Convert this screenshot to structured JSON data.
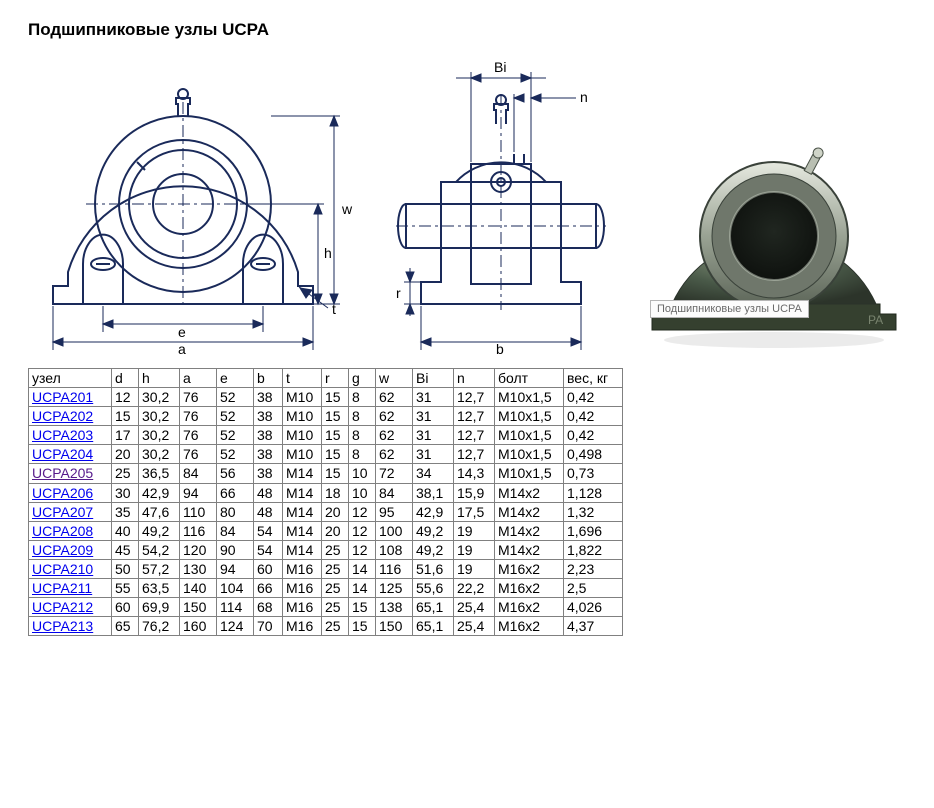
{
  "title": "Подшипниковые узлы UCPA",
  "tooltip": "Подшипниковые узлы UCPA",
  "diagram": {
    "stroke": "#1a2a5a",
    "label_font_size": 14,
    "labels_front": {
      "w": "w",
      "h": "h",
      "t": "t",
      "e": "e",
      "a": "a"
    },
    "labels_side": {
      "Bi": "Bi",
      "n": "n",
      "r": "r",
      "b": "b"
    },
    "photo_colors": {
      "body": "#4a5a49",
      "body_hi": "#7a8a74",
      "bore": "#b6bdaf",
      "bore_dark": "#323a30",
      "base": "#2f362d"
    }
  },
  "table": {
    "columns": [
      "узел",
      "d",
      "h",
      "a",
      "e",
      "b",
      "t",
      "r",
      "g",
      "w",
      "Bi",
      "n",
      "болт",
      "вес, кг"
    ],
    "col_keys": [
      "uzel",
      "d",
      "h",
      "a",
      "e",
      "b",
      "t",
      "r",
      "g",
      "w",
      "Bi",
      "n",
      "bolt",
      "wt"
    ],
    "rows": [
      {
        "uzel": "UCPA201",
        "d": "12",
        "h": "30,2",
        "a": "76",
        "e": "52",
        "b": "38",
        "t": "M10",
        "r": "15",
        "g": "8",
        "w": "62",
        "Bi": "31",
        "n": "12,7",
        "bolt": "M10x1,5",
        "wt": "0,42",
        "visited": false
      },
      {
        "uzel": "UCPA202",
        "d": "15",
        "h": "30,2",
        "a": "76",
        "e": "52",
        "b": "38",
        "t": "M10",
        "r": "15",
        "g": "8",
        "w": "62",
        "Bi": "31",
        "n": "12,7",
        "bolt": "M10x1,5",
        "wt": "0,42",
        "visited": false
      },
      {
        "uzel": "UCPA203",
        "d": "17",
        "h": "30,2",
        "a": "76",
        "e": "52",
        "b": "38",
        "t": "M10",
        "r": "15",
        "g": "8",
        "w": "62",
        "Bi": "31",
        "n": "12,7",
        "bolt": "M10x1,5",
        "wt": "0,42",
        "visited": false
      },
      {
        "uzel": "UCPA204",
        "d": "20",
        "h": "30,2",
        "a": "76",
        "e": "52",
        "b": "38",
        "t": "M10",
        "r": "15",
        "g": "8",
        "w": "62",
        "Bi": "31",
        "n": "12,7",
        "bolt": "M10x1,5",
        "wt": "0,498",
        "visited": false
      },
      {
        "uzel": "UCPA205",
        "d": "25",
        "h": "36,5",
        "a": "84",
        "e": "56",
        "b": "38",
        "t": "M14",
        "r": "15",
        "g": "10",
        "w": "72",
        "Bi": "34",
        "n": "14,3",
        "bolt": "M10x1,5",
        "wt": "0,73",
        "visited": true
      },
      {
        "uzel": "UCPA206",
        "d": "30",
        "h": "42,9",
        "a": "94",
        "e": "66",
        "b": "48",
        "t": "M14",
        "r": "18",
        "g": "10",
        "w": "84",
        "Bi": "38,1",
        "n": "15,9",
        "bolt": "M14x2",
        "wt": "1,128",
        "visited": false
      },
      {
        "uzel": "UCPA207",
        "d": "35",
        "h": "47,6",
        "a": "110",
        "e": "80",
        "b": "48",
        "t": "M14",
        "r": "20",
        "g": "12",
        "w": "95",
        "Bi": "42,9",
        "n": "17,5",
        "bolt": "M14x2",
        "wt": "1,32",
        "visited": false
      },
      {
        "uzel": "UCPA208",
        "d": "40",
        "h": "49,2",
        "a": "116",
        "e": "84",
        "b": "54",
        "t": "M14",
        "r": "20",
        "g": "12",
        "w": "100",
        "Bi": "49,2",
        "n": "19",
        "bolt": "M14x2",
        "wt": "1,696",
        "visited": false
      },
      {
        "uzel": "UCPA209",
        "d": "45",
        "h": "54,2",
        "a": "120",
        "e": "90",
        "b": "54",
        "t": "M14",
        "r": "25",
        "g": "12",
        "w": "108",
        "Bi": "49,2",
        "n": "19",
        "bolt": "M14x2",
        "wt": "1,822",
        "visited": false
      },
      {
        "uzel": "UCPA210",
        "d": "50",
        "h": "57,2",
        "a": "130",
        "e": "94",
        "b": "60",
        "t": "M16",
        "r": "25",
        "g": "14",
        "w": "116",
        "Bi": "51,6",
        "n": "19",
        "bolt": "M16x2",
        "wt": "2,23",
        "visited": false
      },
      {
        "uzel": "UCPA211",
        "d": "55",
        "h": "63,5",
        "a": "140",
        "e": "104",
        "b": "66",
        "t": "M16",
        "r": "25",
        "g": "14",
        "w": "125",
        "Bi": "55,6",
        "n": "22,2",
        "bolt": "M16x2",
        "wt": "2,5",
        "visited": false
      },
      {
        "uzel": "UCPA212",
        "d": "60",
        "h": "69,9",
        "a": "150",
        "e": "114",
        "b": "68",
        "t": "M16",
        "r": "25",
        "g": "15",
        "w": "138",
        "Bi": "65,1",
        "n": "25,4",
        "bolt": "M16x2",
        "wt": "4,026",
        "visited": false
      },
      {
        "uzel": "UCPA213",
        "d": "65",
        "h": "76,2",
        "a": "160",
        "e": "124",
        "b": "70",
        "t": "M16",
        "r": "25",
        "g": "15",
        "w": "150",
        "Bi": "65,1",
        "n": "25,4",
        "bolt": "M16x2",
        "wt": "4,37",
        "visited": false
      }
    ]
  }
}
